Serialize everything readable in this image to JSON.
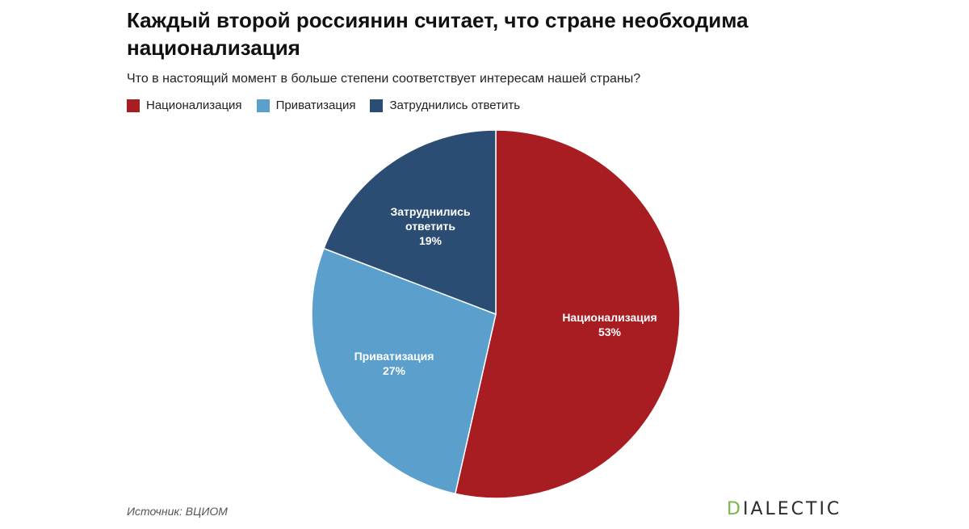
{
  "title": "Каждый второй россиянин считает, что стране необходима национализация",
  "subtitle": "Что в настоящий момент в больше степени соответствует интересам нашей страны?",
  "source": "Источник: ВЦИОМ",
  "brand": {
    "first_letter": "D",
    "rest": "IALECTIC"
  },
  "colors": {
    "nationalization": "#a71d22",
    "privatization": "#5ba0cc",
    "undecided": "#2c4d73",
    "brand_accent": "#7ab648"
  },
  "chart_data": {
    "type": "pie",
    "legend": [
      "Национализация",
      "Приватизация",
      "Затруднились ответить"
    ],
    "slices": [
      {
        "label": "Национализация",
        "value": 53,
        "display": "53%",
        "color": "#a71d22"
      },
      {
        "label": "Приватизация",
        "value": 27,
        "display": "27%",
        "color": "#5ba0cc"
      },
      {
        "label": "Затруднились ответить",
        "value": 19,
        "display": "19%",
        "color": "#2c4d73"
      }
    ]
  }
}
